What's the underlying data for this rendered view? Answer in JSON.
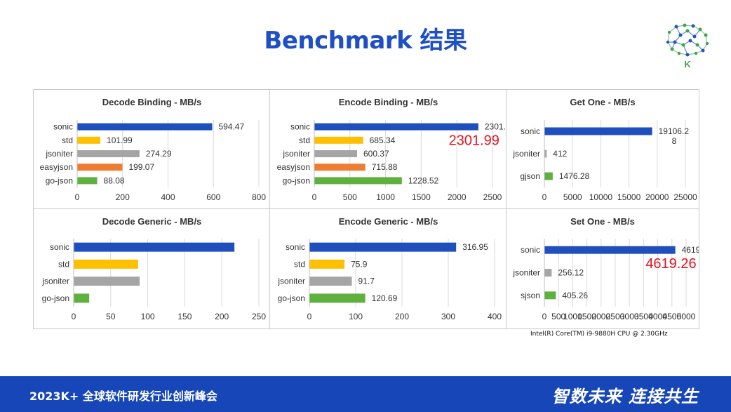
{
  "title": "Benchmark 结果",
  "logo_letter": "K",
  "cpu_note": "Intel(R) Core(TM) i9-9880H CPU @ 2.30GHz",
  "footer": {
    "event": "2023K+ 全球软件研发行业创新峰会",
    "slogan": "智数未来 连接共生"
  },
  "colors": {
    "title": "#1f4fc4",
    "footer": "#1746b8",
    "overlay": "#e8101a"
  },
  "chart_data": [
    {
      "id": "decode-binding",
      "type": "bar",
      "orientation": "horizontal",
      "title": "Decode Binding - MB/s",
      "categories": [
        "sonic",
        "std",
        "jsoniter",
        "easyjson",
        "go-json"
      ],
      "values": [
        594.47,
        101.99,
        274.29,
        199.07,
        88.08
      ],
      "value_labels": [
        "594.47",
        "101.99",
        "274.29",
        "199.07",
        "88.08"
      ],
      "colors": [
        "#1f4fbd",
        "#ffc000",
        "#a5a5a5",
        "#ed7d31",
        "#5fb13f"
      ],
      "xlim": [
        0,
        800
      ],
      "xticks": [
        "0",
        "200",
        "400",
        "600",
        "800"
      ],
      "grid": true
    },
    {
      "id": "encode-binding",
      "type": "bar",
      "orientation": "horizontal",
      "title": "Encode Binding - MB/s",
      "categories": [
        "sonic",
        "std",
        "jsoniter",
        "easyjson",
        "go-json"
      ],
      "values": [
        2301.99,
        685.34,
        600.37,
        715.88,
        1228.52
      ],
      "value_labels": [
        "2301.99",
        "685.34",
        "600.37",
        "715.88",
        "1228.52"
      ],
      "colors": [
        "#1f4fbd",
        "#ffc000",
        "#a5a5a5",
        "#ed7d31",
        "#5fb13f"
      ],
      "xlim": [
        0,
        2500
      ],
      "xticks": [
        "0",
        "500",
        "1000",
        "1500",
        "2000",
        "2500"
      ],
      "grid": true,
      "overlay": "2301.99"
    },
    {
      "id": "get-one",
      "type": "bar",
      "orientation": "horizontal",
      "title": "Get One - MB/s",
      "categories": [
        "sonic",
        "jsoniter",
        "gjson"
      ],
      "values": [
        19106.28,
        412,
        1476.28
      ],
      "value_labels": [
        "19106.2\n8",
        "412",
        "1476.28"
      ],
      "colors": [
        "#1f4fbd",
        "#a5a5a5",
        "#5fb13f"
      ],
      "xlim": [
        0,
        25000
      ],
      "xticks": [
        "0",
        "5000",
        "10000",
        "15000",
        "20000",
        "25000"
      ],
      "grid": true
    },
    {
      "id": "decode-generic",
      "type": "bar",
      "orientation": "horizontal",
      "title": "Decode Generic - MB/s",
      "categories": [
        "sonic",
        "std",
        "jsoniter",
        "go-json"
      ],
      "values": [
        217,
        87,
        89,
        21
      ],
      "value_labels": [
        "",
        "",
        "",
        ""
      ],
      "colors": [
        "#1f4fbd",
        "#ffc000",
        "#a5a5a5",
        "#5fb13f"
      ],
      "xlim": [
        0,
        250
      ],
      "xticks": [
        "0",
        "50",
        "100",
        "150",
        "200",
        "250"
      ],
      "grid": true
    },
    {
      "id": "encode-generic",
      "type": "bar",
      "orientation": "horizontal",
      "title": "Encode Generic - MB/s",
      "categories": [
        "sonic",
        "std",
        "jsoniter",
        "go-json"
      ],
      "values": [
        316.95,
        75.9,
        91.7,
        120.69
      ],
      "value_labels": [
        "316.95",
        "75.9",
        "91.7",
        "120.69"
      ],
      "colors": [
        "#1f4fbd",
        "#ffc000",
        "#a5a5a5",
        "#5fb13f"
      ],
      "xlim": [
        0,
        400
      ],
      "xticks": [
        "0",
        "100",
        "200",
        "300",
        "400"
      ],
      "grid": true
    },
    {
      "id": "set-one",
      "type": "bar",
      "orientation": "horizontal",
      "title": "Set One - MB/s",
      "categories": [
        "sonic",
        "jsoniter",
        "sjson"
      ],
      "values": [
        4619.26,
        256.12,
        405.26
      ],
      "value_labels": [
        "4619.26",
        "256.12",
        "405.26"
      ],
      "colors": [
        "#1f4fbd",
        "#a5a5a5",
        "#5fb13f"
      ],
      "xlim": [
        0,
        5000
      ],
      "xticks": [
        "0",
        "500",
        "1000",
        "1500",
        "2000",
        "2500",
        "3000",
        "3500",
        "4000",
        "4500",
        "5000"
      ],
      "grid": true,
      "overlay": "4619.26"
    }
  ]
}
